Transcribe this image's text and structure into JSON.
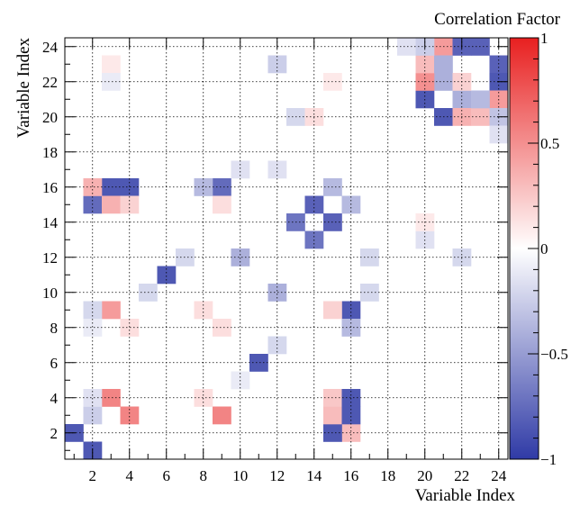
{
  "chart_data": {
    "type": "heatmap",
    "title": "",
    "colorbar_title": "Correlation Factor",
    "xlabel": "Variable Index",
    "ylabel": "Variable Index",
    "xlim": [
      0.5,
      24.5
    ],
    "ylim": [
      0.5,
      24.5
    ],
    "zlim": [
      -1,
      1
    ],
    "x_ticks": [
      "2",
      "4",
      "6",
      "8",
      "10",
      "12",
      "14",
      "16",
      "18",
      "20",
      "22",
      "24"
    ],
    "y_ticks": [
      "2",
      "4",
      "6",
      "8",
      "10",
      "12",
      "14",
      "16",
      "18",
      "20",
      "22",
      "24"
    ],
    "colorbar_ticks": [
      "1",
      "0.5",
      "0",
      "−0.5",
      "−1"
    ],
    "grid": true,
    "colorscale": [
      "#2f3aa6",
      "#ffffff",
      "#e82020"
    ],
    "cells": [
      {
        "x": 1,
        "y": 2,
        "v": -0.85
      },
      {
        "x": 2,
        "y": 1,
        "v": -0.85
      },
      {
        "x": 3,
        "y": 4,
        "v": 0.55
      },
      {
        "x": 4,
        "y": 3,
        "v": 0.55
      },
      {
        "x": 9,
        "y": 3,
        "v": 0.55
      },
      {
        "x": 3,
        "y": 9,
        "v": 0.45
      },
      {
        "x": 9,
        "y": 8,
        "v": 0.15
      },
      {
        "x": 4,
        "y": 8,
        "v": 0.15
      },
      {
        "x": 8,
        "y": 4,
        "v": 0.15
      },
      {
        "x": 8,
        "y": 9,
        "v": 0.15
      },
      {
        "x": 2,
        "y": 3,
        "v": -0.25
      },
      {
        "x": 2,
        "y": 4,
        "v": -0.15
      },
      {
        "x": 2,
        "y": 9,
        "v": -0.2
      },
      {
        "x": 2,
        "y": 8,
        "v": -0.1
      },
      {
        "x": 16,
        "y": 2,
        "v": 0.3
      },
      {
        "x": 15,
        "y": 2,
        "v": -0.85
      },
      {
        "x": 15,
        "y": 3,
        "v": 0.3
      },
      {
        "x": 15,
        "y": 4,
        "v": 0.25
      },
      {
        "x": 16,
        "y": 3,
        "v": -0.85
      },
      {
        "x": 16,
        "y": 4,
        "v": -0.85
      },
      {
        "x": 16,
        "y": 9,
        "v": -0.85
      },
      {
        "x": 16,
        "y": 8,
        "v": -0.35
      },
      {
        "x": 15,
        "y": 9,
        "v": 0.2
      },
      {
        "x": 11,
        "y": 6,
        "v": -0.85
      },
      {
        "x": 6,
        "y": 11,
        "v": -0.85
      },
      {
        "x": 12,
        "y": 10,
        "v": -0.4
      },
      {
        "x": 10,
        "y": 12,
        "v": -0.4
      },
      {
        "x": 5,
        "y": 10,
        "v": -0.2
      },
      {
        "x": 12,
        "y": 7,
        "v": -0.2
      },
      {
        "x": 7,
        "y": 12,
        "v": -0.2
      },
      {
        "x": 17,
        "y": 10,
        "v": -0.2
      },
      {
        "x": 17,
        "y": 12,
        "v": -0.2
      },
      {
        "x": 14,
        "y": 13,
        "v": -0.7
      },
      {
        "x": 13,
        "y": 14,
        "v": -0.7
      },
      {
        "x": 15,
        "y": 14,
        "v": -0.8
      },
      {
        "x": 14,
        "y": 15,
        "v": -0.8
      },
      {
        "x": 15,
        "y": 16,
        "v": -0.35
      },
      {
        "x": 16,
        "y": 15,
        "v": -0.35
      },
      {
        "x": 3,
        "y": 16,
        "v": -0.85
      },
      {
        "x": 4,
        "y": 16,
        "v": -0.85
      },
      {
        "x": 2,
        "y": 15,
        "v": -0.75
      },
      {
        "x": 2,
        "y": 16,
        "v": 0.35
      },
      {
        "x": 3,
        "y": 15,
        "v": 0.35
      },
      {
        "x": 4,
        "y": 15,
        "v": 0.2
      },
      {
        "x": 9,
        "y": 16,
        "v": -0.75
      },
      {
        "x": 8,
        "y": 16,
        "v": -0.35
      },
      {
        "x": 9,
        "y": 15,
        "v": 0.15
      },
      {
        "x": 20,
        "y": 21,
        "v": -0.85
      },
      {
        "x": 21,
        "y": 20,
        "v": -0.85
      },
      {
        "x": 21,
        "y": 24,
        "v": 0.45
      },
      {
        "x": 22,
        "y": 24,
        "v": -0.8
      },
      {
        "x": 23,
        "y": 24,
        "v": -0.8
      },
      {
        "x": 24,
        "y": 23,
        "v": -0.8
      },
      {
        "x": 24,
        "y": 22,
        "v": -0.85
      },
      {
        "x": 24,
        "y": 21,
        "v": 0.45
      },
      {
        "x": 22,
        "y": 21,
        "v": -0.4
      },
      {
        "x": 21,
        "y": 22,
        "v": -0.4
      },
      {
        "x": 20,
        "y": 22,
        "v": 0.5
      },
      {
        "x": 20,
        "y": 23,
        "v": 0.3
      },
      {
        "x": 21,
        "y": 23,
        "v": -0.4
      },
      {
        "x": 22,
        "y": 20,
        "v": 0.35
      },
      {
        "x": 23,
        "y": 20,
        "v": 0.3
      },
      {
        "x": 23,
        "y": 21,
        "v": -0.35
      },
      {
        "x": 24,
        "y": 20,
        "v": -0.3
      },
      {
        "x": 24,
        "y": 19,
        "v": -0.15
      },
      {
        "x": 19,
        "y": 24,
        "v": -0.15
      },
      {
        "x": 20,
        "y": 24,
        "v": -0.25
      },
      {
        "x": 22,
        "y": 22,
        "v": 0.2
      },
      {
        "x": 10,
        "y": 5,
        "v": -0.1
      },
      {
        "x": 13,
        "y": 20,
        "v": -0.2
      },
      {
        "x": 14,
        "y": 20,
        "v": 0.15
      },
      {
        "x": 12,
        "y": 23,
        "v": -0.25
      },
      {
        "x": 10,
        "y": 17,
        "v": -0.15
      },
      {
        "x": 12,
        "y": 17,
        "v": -0.15
      },
      {
        "x": 20,
        "y": 13,
        "v": -0.15
      },
      {
        "x": 20,
        "y": 14,
        "v": 0.1
      },
      {
        "x": 22,
        "y": 12,
        "v": -0.2
      },
      {
        "x": 3,
        "y": 23,
        "v": 0.1
      },
      {
        "x": 3,
        "y": 22,
        "v": -0.1
      },
      {
        "x": 15,
        "y": 22,
        "v": 0.1
      }
    ]
  }
}
